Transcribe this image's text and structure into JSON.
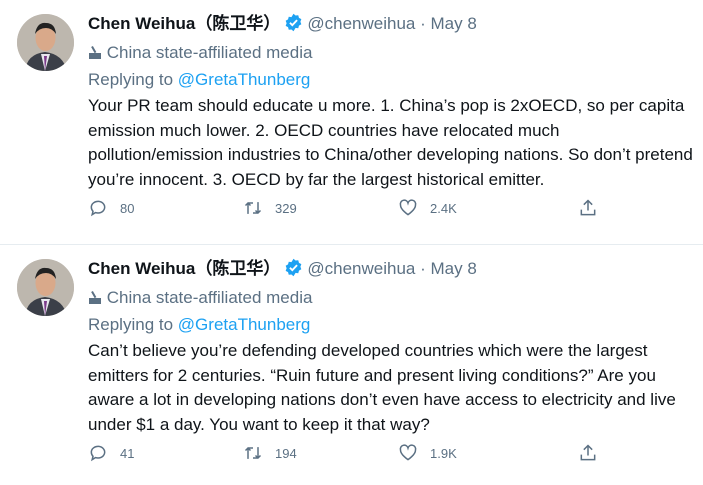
{
  "tweets": [
    {
      "name": "Chen Weihua",
      "cjk_name": "（陈卫华）",
      "handle": "@chenweihua",
      "date": "May 8",
      "label": "China state-affiliated media",
      "replying_prefix": "Replying to",
      "replying_to": "@GretaThunberg",
      "text": "Your PR team should educate u more. 1. China’s pop is 2xOECD, so per capita emission much lower. 2. OECD countries have relocated much pollution/emission industries to China/other developing nations. So don’t pretend you’re innocent. 3. OECD by far the largest historical emitter.",
      "replies": "80",
      "retweets": "329",
      "likes": "2.4K"
    },
    {
      "name": "Chen Weihua",
      "cjk_name": "（陈卫华）",
      "handle": "@chenweihua",
      "date": "May 8",
      "label": "China state-affiliated media",
      "replying_prefix": "Replying to",
      "replying_to": "@GretaThunberg",
      "text": "Can’t believe you’re defending developed countries which were the largest emitters for 2 centuries. “Ruin future and present living conditions?” Are you aware a lot in developing nations don’t even have access to electricity and live under $1 a day. You want to keep it that way?",
      "replies": "41",
      "retweets": "194",
      "likes": "1.9K"
    }
  ],
  "colors": {
    "accent": "#1da1f2",
    "muted": "#5b7083",
    "text": "#0f1419",
    "divider": "#e6ecf0"
  }
}
